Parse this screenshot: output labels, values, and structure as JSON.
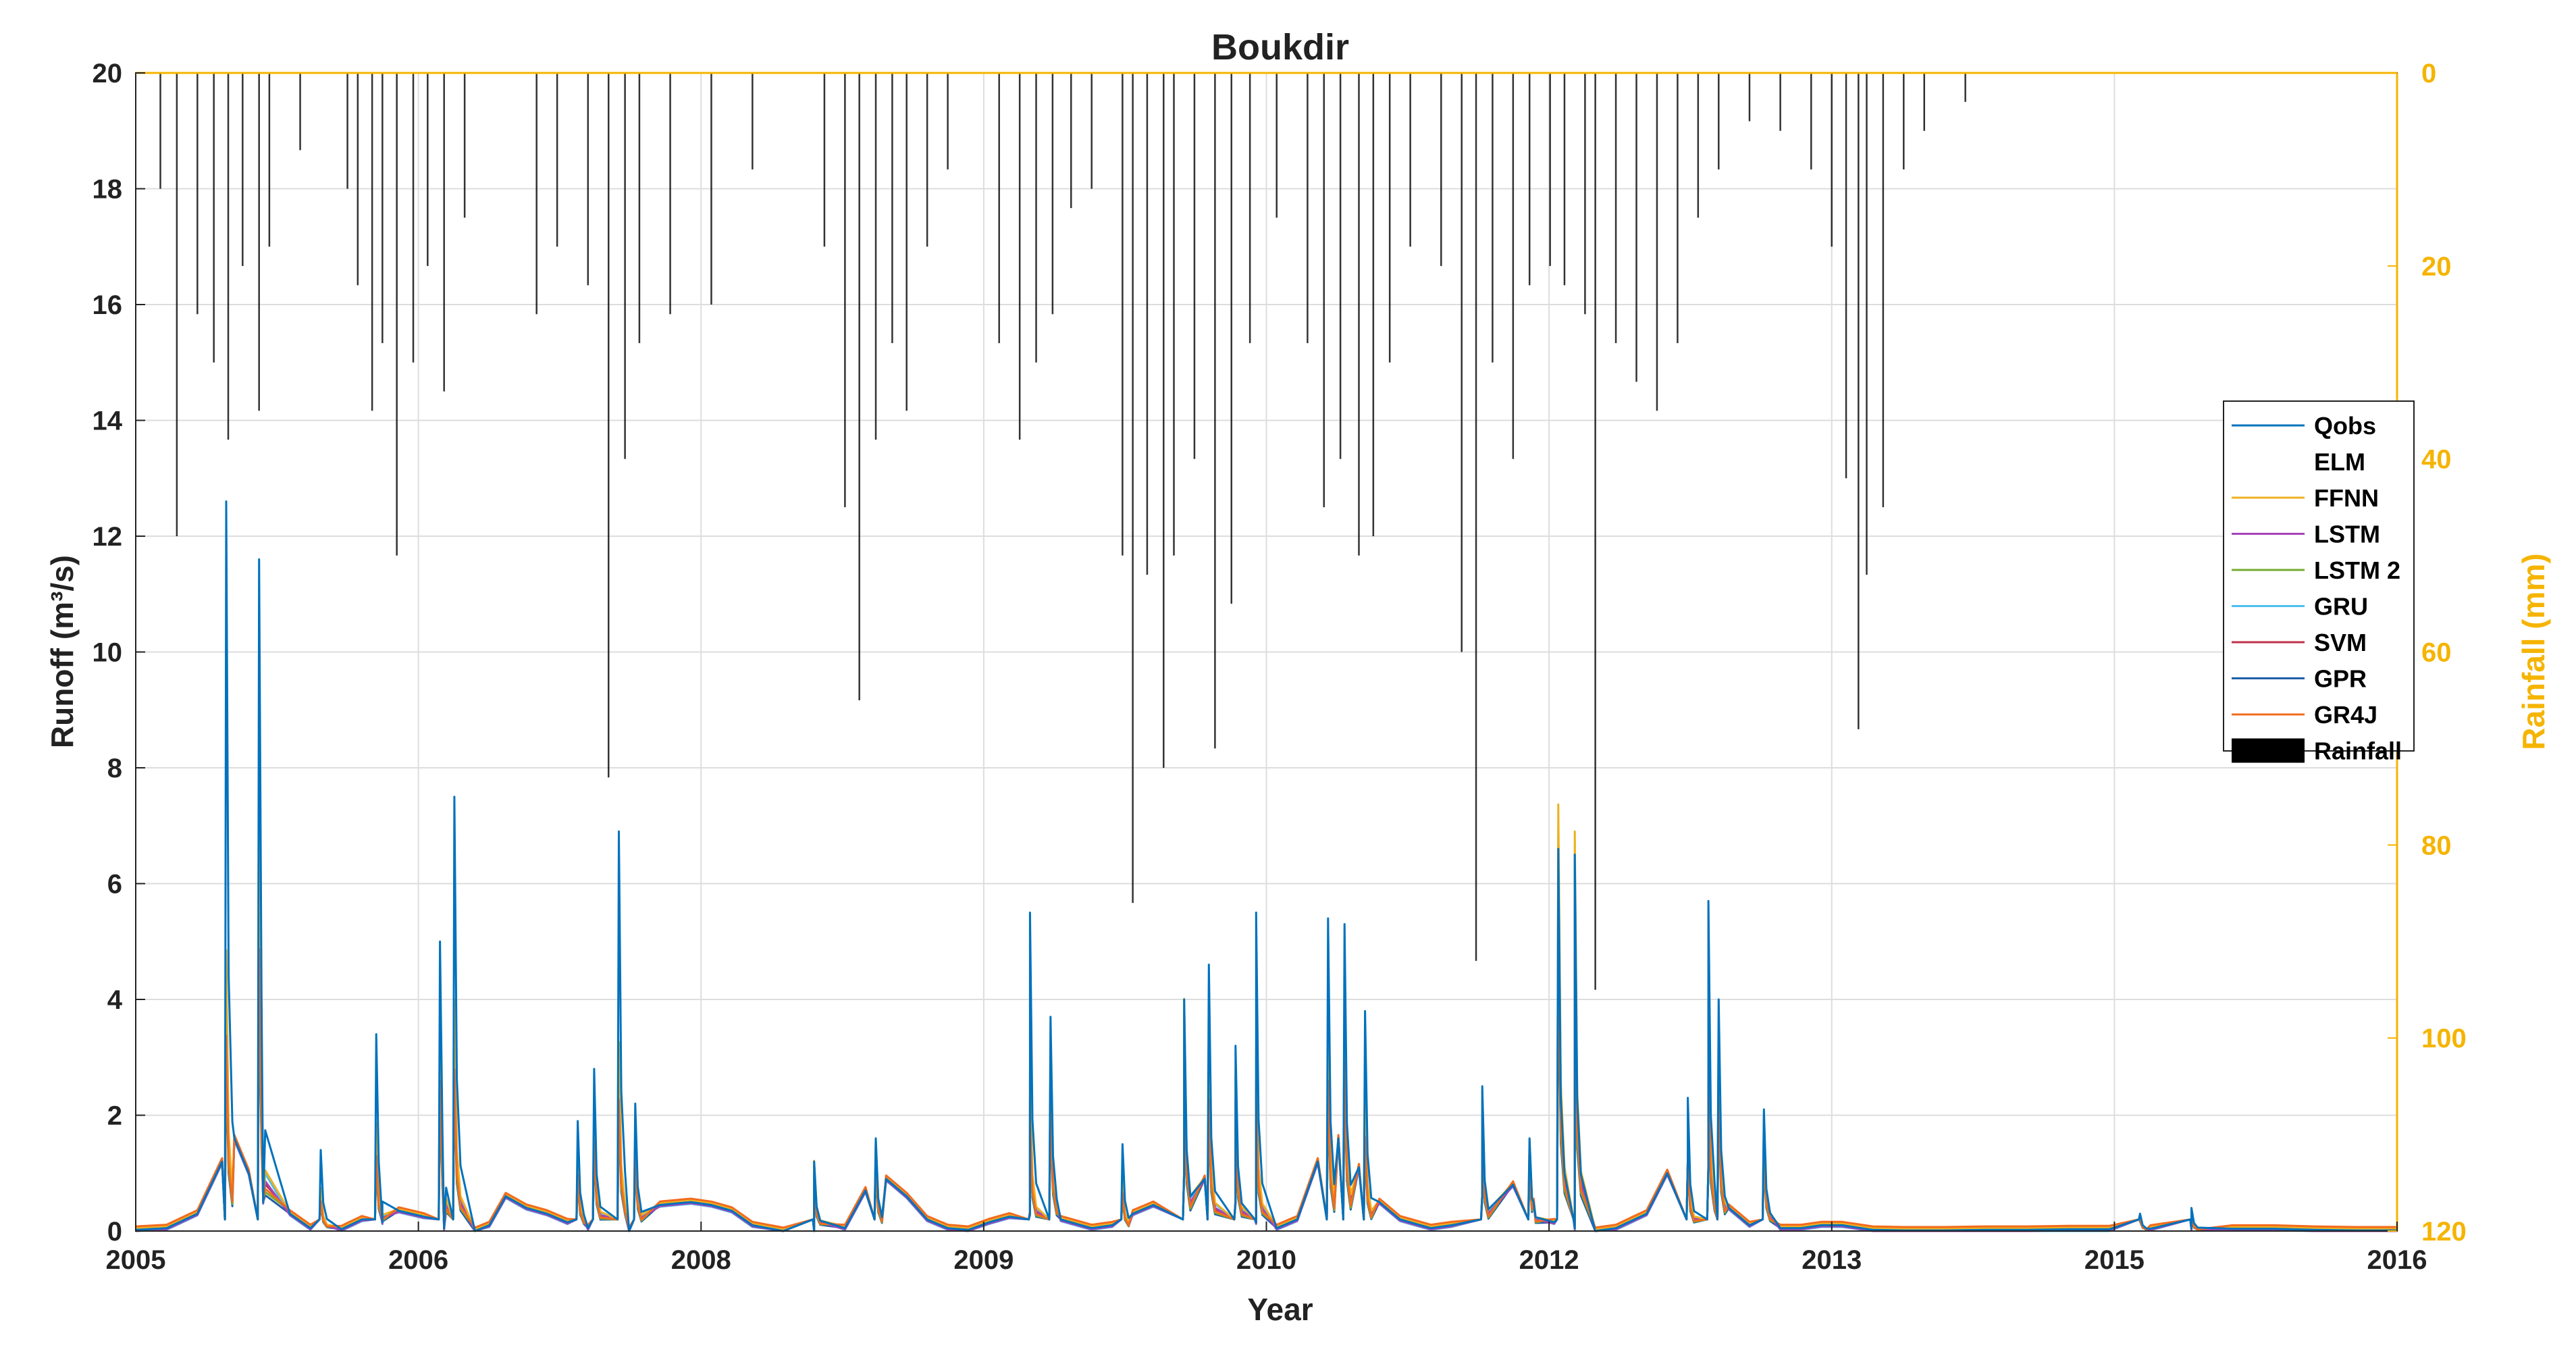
{
  "chart_data": {
    "type": "line",
    "title": "Boukdir",
    "xlabel": "Year",
    "ylabel": "Runoff (m³/s)",
    "y2label": "Rainfall (mm)",
    "xlim": [
      2005,
      2016
    ],
    "ylim": [
      0,
      20
    ],
    "y2lim": [
      0,
      120
    ],
    "y2_reversed": true,
    "x_ticks": [
      "2005",
      "2006",
      "2008",
      "2009",
      "2010",
      "2012",
      "2013",
      "2015",
      "2016"
    ],
    "y_ticks": [
      "0",
      "2",
      "4",
      "6",
      "8",
      "10",
      "12",
      "14",
      "16",
      "18",
      "20"
    ],
    "y2_ticks": [
      "0",
      "20",
      "40",
      "60",
      "80",
      "100",
      "120"
    ],
    "grid": true,
    "legend_position": "right",
    "colors": {
      "axis": "#222222",
      "rainfall_axis": "#f5b400",
      "rainfall": "#000000",
      "grid": "#dddddd"
    },
    "series": [
      {
        "name": "Qobs",
        "color": "#0072bd",
        "style": "line"
      },
      {
        "name": "ELM",
        "color": "#ffffff",
        "style": "line"
      },
      {
        "name": "FFNN",
        "color": "#edb120",
        "style": "line"
      },
      {
        "name": "LSTM",
        "color": "#a545b8",
        "style": "line"
      },
      {
        "name": "LSTM 2",
        "color": "#77ac30",
        "style": "line"
      },
      {
        "name": "GRU",
        "color": "#4dbeee",
        "style": "line"
      },
      {
        "name": "SVM",
        "color": "#c0304a",
        "style": "line"
      },
      {
        "name": "GPR",
        "color": "#1f5fa8",
        "style": "line"
      },
      {
        "name": "GR4J",
        "color": "#f26b1d",
        "style": "line"
      },
      {
        "name": "Rainfall",
        "color": "#000000",
        "style": "bar"
      }
    ],
    "runoff_baseflow": [
      [
        2005.0,
        0.02
      ],
      [
        2005.15,
        0.05
      ],
      [
        2005.3,
        0.3
      ],
      [
        2005.42,
        1.2
      ],
      [
        2005.48,
        1.6
      ],
      [
        2005.55,
        1.0
      ],
      [
        2005.62,
        0.5
      ],
      [
        2005.75,
        0.3
      ],
      [
        2005.85,
        0.05
      ],
      [
        2006.0,
        0.03
      ],
      [
        2006.1,
        0.2
      ],
      [
        2006.2,
        0.15
      ],
      [
        2006.28,
        0.35
      ],
      [
        2006.4,
        0.25
      ],
      [
        2006.5,
        0.05
      ],
      [
        2006.65,
        0.0
      ],
      [
        2006.72,
        0.1
      ],
      [
        2006.8,
        0.6
      ],
      [
        2006.9,
        0.4
      ],
      [
        2007.0,
        0.3
      ],
      [
        2007.1,
        0.15
      ],
      [
        2007.2,
        0.05
      ],
      [
        2007.4,
        0.0
      ],
      [
        2007.55,
        0.45
      ],
      [
        2007.7,
        0.5
      ],
      [
        2007.8,
        0.45
      ],
      [
        2007.9,
        0.35
      ],
      [
        2008.0,
        0.1
      ],
      [
        2008.15,
        0.0
      ],
      [
        2008.3,
        0.0
      ],
      [
        2008.45,
        0.05
      ],
      [
        2008.55,
        0.7
      ],
      [
        2008.65,
        0.9
      ],
      [
        2008.75,
        0.6
      ],
      [
        2008.85,
        0.2
      ],
      [
        2008.95,
        0.05
      ],
      [
        2009.05,
        0.02
      ],
      [
        2009.15,
        0.15
      ],
      [
        2009.25,
        0.25
      ],
      [
        2009.35,
        0.3
      ],
      [
        2009.5,
        0.2
      ],
      [
        2009.65,
        0.05
      ],
      [
        2009.75,
        0.1
      ],
      [
        2009.85,
        0.3
      ],
      [
        2009.95,
        0.45
      ],
      [
        2010.1,
        1.0
      ],
      [
        2010.2,
        0.9
      ],
      [
        2010.35,
        0.5
      ],
      [
        2010.45,
        0.15
      ],
      [
        2010.55,
        0.05
      ],
      [
        2010.65,
        0.2
      ],
      [
        2010.75,
        1.2
      ],
      [
        2010.85,
        1.6
      ],
      [
        2010.95,
        1.1
      ],
      [
        2011.05,
        0.5
      ],
      [
        2011.15,
        0.2
      ],
      [
        2011.3,
        0.05
      ],
      [
        2011.4,
        0.1
      ],
      [
        2011.55,
        0.6
      ],
      [
        2011.7,
        0.8
      ],
      [
        2011.8,
        0.5
      ],
      [
        2011.9,
        0.15
      ],
      [
        2012.0,
        0.05
      ],
      [
        2012.1,
        0.0
      ],
      [
        2012.2,
        0.05
      ],
      [
        2012.35,
        0.3
      ],
      [
        2012.45,
        1.0
      ],
      [
        2012.55,
        1.2
      ],
      [
        2012.65,
        1.1
      ],
      [
        2012.75,
        0.4
      ],
      [
        2012.85,
        0.1
      ],
      [
        2013.0,
        0.05
      ],
      [
        2013.1,
        0.05
      ],
      [
        2013.2,
        0.1
      ],
      [
        2013.3,
        0.1
      ],
      [
        2013.45,
        0.02
      ],
      [
        2013.6,
        0.01
      ],
      [
        2013.8,
        0.01
      ],
      [
        2014.0,
        0.02
      ],
      [
        2014.2,
        0.02
      ],
      [
        2014.4,
        0.03
      ],
      [
        2014.6,
        0.03
      ],
      [
        2014.8,
        0.04
      ],
      [
        2015.0,
        0.04
      ],
      [
        2015.2,
        0.04
      ],
      [
        2015.4,
        0.04
      ],
      [
        2015.6,
        0.02
      ],
      [
        2015.8,
        0.01
      ],
      [
        2016.0,
        0.01
      ]
    ],
    "runoff_peaks": [
      {
        "x": 2005.44,
        "Qobs": 12.6,
        "model_max": 5.2
      },
      {
        "x": 2005.6,
        "Qobs": 11.6,
        "model_max": 7.5
      },
      {
        "x": 2005.9,
        "Qobs": 1.4,
        "model_max": 0.8
      },
      {
        "x": 2006.17,
        "Qobs": 3.4,
        "model_max": 2.0
      },
      {
        "x": 2006.48,
        "Qobs": 5.0,
        "model_max": 4.0
      },
      {
        "x": 2006.55,
        "Qobs": 7.5,
        "model_max": 4.3
      },
      {
        "x": 2007.15,
        "Qobs": 1.9,
        "model_max": 1.5
      },
      {
        "x": 2007.23,
        "Qobs": 2.8,
        "model_max": 2.4
      },
      {
        "x": 2007.35,
        "Qobs": 6.9,
        "model_max": 3.5
      },
      {
        "x": 2007.43,
        "Qobs": 2.2,
        "model_max": 2.0
      },
      {
        "x": 2008.3,
        "Qobs": 1.2,
        "model_max": 1.3
      },
      {
        "x": 2008.6,
        "Qobs": 1.6,
        "model_max": 1.7
      },
      {
        "x": 2009.35,
        "Qobs": 5.5,
        "model_max": 3.0
      },
      {
        "x": 2009.45,
        "Qobs": 3.7,
        "model_max": 3.3
      },
      {
        "x": 2009.8,
        "Qobs": 1.5,
        "model_max": 1.0
      },
      {
        "x": 2010.1,
        "Qobs": 4.0,
        "model_max": 4.3
      },
      {
        "x": 2010.22,
        "Qobs": 4.6,
        "model_max": 3.5
      },
      {
        "x": 2010.35,
        "Qobs": 3.2,
        "model_max": 3.0
      },
      {
        "x": 2010.45,
        "Qobs": 5.5,
        "model_max": 3.4
      },
      {
        "x": 2010.8,
        "Qobs": 5.4,
        "model_max": 4.0
      },
      {
        "x": 2010.88,
        "Qobs": 5.3,
        "model_max": 4.5
      },
      {
        "x": 2010.98,
        "Qobs": 3.8,
        "model_max": 2.5
      },
      {
        "x": 2011.55,
        "Qobs": 2.5,
        "model_max": 2.6
      },
      {
        "x": 2011.78,
        "Qobs": 1.6,
        "model_max": 1.7
      },
      {
        "x": 2011.92,
        "Qobs": 6.6,
        "model_max": 7.9
      },
      {
        "x": 2012.0,
        "Qobs": 6.5,
        "model_max": 7.4
      },
      {
        "x": 2012.55,
        "Qobs": 2.3,
        "model_max": 1.8
      },
      {
        "x": 2012.65,
        "Qobs": 5.7,
        "model_max": 4.3
      },
      {
        "x": 2012.7,
        "Qobs": 4.0,
        "model_max": 3.5
      },
      {
        "x": 2012.92,
        "Qobs": 2.1,
        "model_max": 2.1
      },
      {
        "x": 2014.75,
        "Qobs": 0.3,
        "model_max": 0.3
      },
      {
        "x": 2015.0,
        "Qobs": 0.4,
        "model_max": 0.3
      }
    ],
    "rainfall_events": [
      [
        2005.12,
        12
      ],
      [
        2005.2,
        48
      ],
      [
        2005.3,
        25
      ],
      [
        2005.38,
        30
      ],
      [
        2005.45,
        38
      ],
      [
        2005.52,
        20
      ],
      [
        2005.6,
        35
      ],
      [
        2005.65,
        18
      ],
      [
        2005.8,
        8
      ],
      [
        2006.03,
        12
      ],
      [
        2006.08,
        22
      ],
      [
        2006.15,
        35
      ],
      [
        2006.2,
        28
      ],
      [
        2006.27,
        50
      ],
      [
        2006.35,
        30
      ],
      [
        2006.42,
        20
      ],
      [
        2006.5,
        33
      ],
      [
        2006.6,
        15
      ],
      [
        2006.95,
        25
      ],
      [
        2007.05,
        18
      ],
      [
        2007.2,
        22
      ],
      [
        2007.3,
        73
      ],
      [
        2007.38,
        40
      ],
      [
        2007.45,
        28
      ],
      [
        2007.6,
        25
      ],
      [
        2007.8,
        24
      ],
      [
        2008.0,
        10
      ],
      [
        2008.35,
        18
      ],
      [
        2008.45,
        45
      ],
      [
        2008.52,
        65
      ],
      [
        2008.6,
        38
      ],
      [
        2008.68,
        28
      ],
      [
        2008.75,
        35
      ],
      [
        2008.85,
        18
      ],
      [
        2008.95,
        10
      ],
      [
        2009.2,
        28
      ],
      [
        2009.3,
        38
      ],
      [
        2009.38,
        30
      ],
      [
        2009.46,
        25
      ],
      [
        2009.55,
        14
      ],
      [
        2009.65,
        12
      ],
      [
        2009.8,
        50
      ],
      [
        2009.85,
        86
      ],
      [
        2009.92,
        52
      ],
      [
        2010.0,
        72
      ],
      [
        2010.05,
        50
      ],
      [
        2010.15,
        40
      ],
      [
        2010.25,
        70
      ],
      [
        2010.33,
        55
      ],
      [
        2010.42,
        28
      ],
      [
        2010.55,
        15
      ],
      [
        2010.7,
        28
      ],
      [
        2010.78,
        45
      ],
      [
        2010.86,
        40
      ],
      [
        2010.95,
        50
      ],
      [
        2011.02,
        48
      ],
      [
        2011.1,
        30
      ],
      [
        2011.2,
        18
      ],
      [
        2011.35,
        20
      ],
      [
        2011.45,
        60
      ],
      [
        2011.52,
        92
      ],
      [
        2011.6,
        30
      ],
      [
        2011.7,
        40
      ],
      [
        2011.78,
        22
      ],
      [
        2011.88,
        20
      ],
      [
        2011.95,
        22
      ],
      [
        2012.05,
        25
      ],
      [
        2012.1,
        95
      ],
      [
        2012.2,
        28
      ],
      [
        2012.3,
        32
      ],
      [
        2012.4,
        35
      ],
      [
        2012.5,
        28
      ],
      [
        2012.6,
        15
      ],
      [
        2012.7,
        10
      ],
      [
        2012.85,
        5
      ],
      [
        2013.0,
        6
      ],
      [
        2013.15,
        10
      ],
      [
        2013.25,
        18
      ],
      [
        2013.32,
        42
      ],
      [
        2013.38,
        68
      ],
      [
        2013.42,
        52
      ],
      [
        2013.5,
        45
      ],
      [
        2013.6,
        10
      ],
      [
        2013.7,
        6
      ],
      [
        2013.9,
        3
      ]
    ]
  }
}
